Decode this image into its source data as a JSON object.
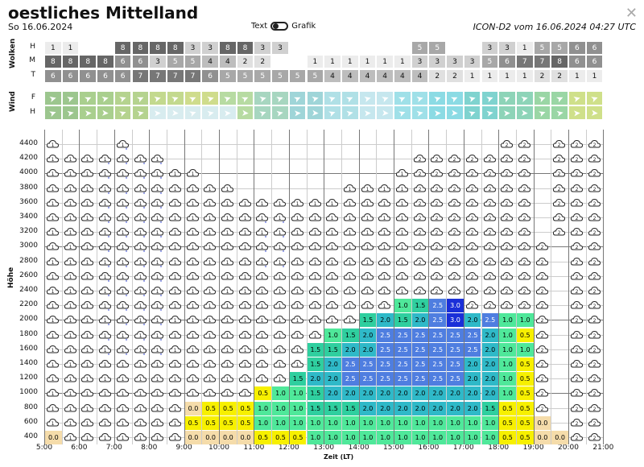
{
  "header": {
    "title": "oestliches Mittelland",
    "date": "So 16.06.2024",
    "toggle_left": "Text",
    "toggle_right": "Grafik",
    "model": "ICON-D2 vom 16.06.2024 04:27 UTC",
    "close_icon": "close-icon"
  },
  "clouds": {
    "section_label": "Wolken",
    "rows": [
      {
        "label": "H",
        "values": [
          "1",
          "1",
          "",
          "",
          "8",
          "8",
          "8",
          "8",
          "3",
          "3",
          "8",
          "8",
          "3",
          "3",
          "",
          "",
          "",
          "",
          "",
          "",
          "",
          "5",
          "5",
          "",
          "",
          "3",
          "3",
          "1",
          "5",
          "5",
          "6",
          "6"
        ]
      },
      {
        "label": "M",
        "values": [
          "8",
          "8",
          "8",
          "8",
          "6",
          "6",
          "3",
          "5",
          "5",
          "4",
          "4",
          "2",
          "2",
          "",
          "",
          "1",
          "1",
          "1",
          "1",
          "1",
          "1",
          "3",
          "3",
          "3",
          "3",
          "5",
          "6",
          "7",
          "7",
          "8",
          "6",
          "6"
        ]
      },
      {
        "label": "T",
        "values": [
          "6",
          "6",
          "6",
          "6",
          "6",
          "7",
          "7",
          "7",
          "7",
          "6",
          "5",
          "5",
          "5",
          "5",
          "5",
          "5",
          "4",
          "4",
          "4",
          "4",
          "4",
          "4",
          "2",
          "2",
          "1",
          "1",
          "1",
          "1",
          "2",
          "2",
          "1",
          "1"
        ]
      }
    ]
  },
  "wind": {
    "section_label": "Wind",
    "rows": [
      {
        "label": "F"
      },
      {
        "label": "H"
      }
    ]
  },
  "chart_data": {
    "type": "heatmap",
    "title": "",
    "xlabel": "Zeit (LT)",
    "ylabel": "Höhe",
    "x_ticks": [
      "5:00",
      "6:00",
      "7:00",
      "8:00",
      "9:00",
      "10:00",
      "11:00",
      "12:00",
      "13:00",
      "14:00",
      "15:00",
      "16:00",
      "17:00",
      "18:00",
      "19:00",
      "20:00",
      "21:00"
    ],
    "y_ticks": [
      "400",
      "600",
      "800",
      "1000",
      "1200",
      "1400",
      "1600",
      "1800",
      "2000",
      "2200",
      "2400",
      "2600",
      "2800",
      "3000",
      "3200",
      "3400",
      "3600",
      "3800",
      "4000",
      "4200",
      "4400"
    ],
    "thermal_values": {
      "note_unit": "m/s",
      "rows_by_altitude": {
        "400": [
          "0.0",
          "",
          "",
          "",
          "",
          "",
          "",
          "",
          "0.0",
          "0.0",
          "0.0",
          "0.0",
          "0.5",
          "0.5",
          "0.5",
          "1.0",
          "1.0",
          "1.0",
          "1.0",
          "1.0",
          "1.0",
          "1.0",
          "1.0",
          "1.0",
          "1.0",
          "1.0",
          "0.5",
          "0.5",
          "0.0",
          "0.0",
          "",
          ""
        ],
        "600": [
          "",
          "",
          "",
          "",
          "",
          "",
          "",
          "",
          "0.5",
          "0.5",
          "0.5",
          "0.5",
          "1.0",
          "1.0",
          "1.0",
          "1.0",
          "1.0",
          "1.0",
          "1.0",
          "1.0",
          "1.0",
          "1.0",
          "1.0",
          "1.0",
          "1.0",
          "1.0",
          "0.5",
          "0.5",
          "0.0",
          "",
          "",
          ""
        ],
        "800": [
          "",
          "",
          "",
          "",
          "",
          "",
          "",
          "",
          "0.0",
          "0.5",
          "0.5",
          "0.5",
          "1.0",
          "1.0",
          "1.0",
          "1.5",
          "1.5",
          "1.5",
          "2.0",
          "2.0",
          "2.0",
          "2.0",
          "2.0",
          "2.0",
          "2.0",
          "1.5",
          "0.5",
          "0.5",
          "",
          "",
          "",
          ""
        ],
        "1000": [
          "",
          "",
          "",
          "",
          "",
          "",
          "",
          "",
          "",
          "",
          "",
          "",
          "0.5",
          "1.0",
          "1.0",
          "1.5",
          "2.0",
          "2.0",
          "2.0",
          "2.0",
          "2.0",
          "2.0",
          "2.0",
          "2.0",
          "2.0",
          "2.0",
          "1.0",
          "0.5",
          "",
          "",
          "",
          ""
        ],
        "1200": [
          "",
          "",
          "",
          "",
          "",
          "",
          "",
          "",
          "",
          "",
          "",
          "",
          "",
          "",
          "1.5",
          "2.0",
          "2.0",
          "2.5",
          "2.5",
          "2.5",
          "2.5",
          "2.5",
          "2.5",
          "2.5",
          "2.0",
          "2.0",
          "1.0",
          "0.5",
          "",
          "",
          "",
          ""
        ],
        "1400": [
          "",
          "",
          "",
          "",
          "",
          "",
          "",
          "",
          "",
          "",
          "",
          "",
          "",
          "",
          "",
          "1.5",
          "2.0",
          "2.5",
          "2.5",
          "2.5",
          "2.5",
          "2.5",
          "2.5",
          "2.5",
          "2.0",
          "2.0",
          "1.0",
          "0.5",
          "",
          "",
          "",
          ""
        ],
        "1600": [
          "",
          "",
          "",
          "",
          "",
          "",
          "",
          "",
          "",
          "",
          "",
          "",
          "",
          "",
          "",
          "1.5",
          "1.5",
          "2.0",
          "2.0",
          "2.5",
          "2.5",
          "2.5",
          "2.5",
          "2.5",
          "2.5",
          "2.0",
          "1.0",
          "1.0",
          "",
          "",
          "",
          ""
        ],
        "1800": [
          "",
          "",
          "",
          "",
          "",
          "",
          "",
          "",
          "",
          "",
          "",
          "",
          "",
          "",
          "",
          "",
          "1.0",
          "1.5",
          "2.0",
          "2.5",
          "2.5",
          "2.5",
          "2.5",
          "2.5",
          "2.5",
          "2.0",
          "1.0",
          "0.5",
          "",
          "",
          "",
          ""
        ],
        "2000": [
          "",
          "",
          "",
          "",
          "",
          "",
          "",
          "",
          "",
          "",
          "",
          "",
          "",
          "",
          "",
          "",
          "",
          "",
          "1.5",
          "2.0",
          "1.5",
          "2.0",
          "2.5",
          "3.0",
          "2.0",
          "2.5",
          "1.0",
          "1.0",
          "",
          "",
          "",
          ""
        ],
        "2200": [
          "",
          "",
          "",
          "",
          "",
          "",
          "",
          "",
          "",
          "",
          "",
          "",
          "",
          "",
          "",
          "",
          "",
          "",
          "",
          "",
          "1.0",
          "1.5",
          "2.5",
          "3.0",
          "",
          "",
          "",
          "",
          "",
          "",
          "",
          ""
        ]
      }
    }
  }
}
